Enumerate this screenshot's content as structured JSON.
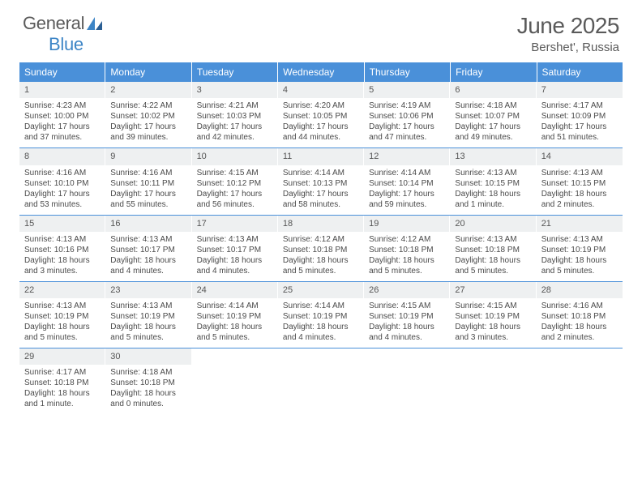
{
  "logo": {
    "part1": "General",
    "part2": "Blue"
  },
  "title": "June 2025",
  "location": "Bershet', Russia",
  "colors": {
    "header_bg": "#4a90d9",
    "header_text": "#ffffff",
    "daynum_bg": "#eef0f1",
    "week_border": "#4a90d9",
    "text": "#4a4a4a",
    "logo_gray": "#5a5a5a",
    "logo_blue": "#3d85c6"
  },
  "fonts": {
    "title_size_pt": 28,
    "location_size_pt": 15,
    "header_cell_pt": 12,
    "body_pt": 10
  },
  "day_labels": [
    "Sunday",
    "Monday",
    "Tuesday",
    "Wednesday",
    "Thursday",
    "Friday",
    "Saturday"
  ],
  "weeks": [
    [
      {
        "n": "1",
        "sr": "4:23 AM",
        "ss": "10:00 PM",
        "dl": "17 hours and 37 minutes."
      },
      {
        "n": "2",
        "sr": "4:22 AM",
        "ss": "10:02 PM",
        "dl": "17 hours and 39 minutes."
      },
      {
        "n": "3",
        "sr": "4:21 AM",
        "ss": "10:03 PM",
        "dl": "17 hours and 42 minutes."
      },
      {
        "n": "4",
        "sr": "4:20 AM",
        "ss": "10:05 PM",
        "dl": "17 hours and 44 minutes."
      },
      {
        "n": "5",
        "sr": "4:19 AM",
        "ss": "10:06 PM",
        "dl": "17 hours and 47 minutes."
      },
      {
        "n": "6",
        "sr": "4:18 AM",
        "ss": "10:07 PM",
        "dl": "17 hours and 49 minutes."
      },
      {
        "n": "7",
        "sr": "4:17 AM",
        "ss": "10:09 PM",
        "dl": "17 hours and 51 minutes."
      }
    ],
    [
      {
        "n": "8",
        "sr": "4:16 AM",
        "ss": "10:10 PM",
        "dl": "17 hours and 53 minutes."
      },
      {
        "n": "9",
        "sr": "4:16 AM",
        "ss": "10:11 PM",
        "dl": "17 hours and 55 minutes."
      },
      {
        "n": "10",
        "sr": "4:15 AM",
        "ss": "10:12 PM",
        "dl": "17 hours and 56 minutes."
      },
      {
        "n": "11",
        "sr": "4:14 AM",
        "ss": "10:13 PM",
        "dl": "17 hours and 58 minutes."
      },
      {
        "n": "12",
        "sr": "4:14 AM",
        "ss": "10:14 PM",
        "dl": "17 hours and 59 minutes."
      },
      {
        "n": "13",
        "sr": "4:13 AM",
        "ss": "10:15 PM",
        "dl": "18 hours and 1 minute."
      },
      {
        "n": "14",
        "sr": "4:13 AM",
        "ss": "10:15 PM",
        "dl": "18 hours and 2 minutes."
      }
    ],
    [
      {
        "n": "15",
        "sr": "4:13 AM",
        "ss": "10:16 PM",
        "dl": "18 hours and 3 minutes."
      },
      {
        "n": "16",
        "sr": "4:13 AM",
        "ss": "10:17 PM",
        "dl": "18 hours and 4 minutes."
      },
      {
        "n": "17",
        "sr": "4:13 AM",
        "ss": "10:17 PM",
        "dl": "18 hours and 4 minutes."
      },
      {
        "n": "18",
        "sr": "4:12 AM",
        "ss": "10:18 PM",
        "dl": "18 hours and 5 minutes."
      },
      {
        "n": "19",
        "sr": "4:12 AM",
        "ss": "10:18 PM",
        "dl": "18 hours and 5 minutes."
      },
      {
        "n": "20",
        "sr": "4:13 AM",
        "ss": "10:18 PM",
        "dl": "18 hours and 5 minutes."
      },
      {
        "n": "21",
        "sr": "4:13 AM",
        "ss": "10:19 PM",
        "dl": "18 hours and 5 minutes."
      }
    ],
    [
      {
        "n": "22",
        "sr": "4:13 AM",
        "ss": "10:19 PM",
        "dl": "18 hours and 5 minutes."
      },
      {
        "n": "23",
        "sr": "4:13 AM",
        "ss": "10:19 PM",
        "dl": "18 hours and 5 minutes."
      },
      {
        "n": "24",
        "sr": "4:14 AM",
        "ss": "10:19 PM",
        "dl": "18 hours and 5 minutes."
      },
      {
        "n": "25",
        "sr": "4:14 AM",
        "ss": "10:19 PM",
        "dl": "18 hours and 4 minutes."
      },
      {
        "n": "26",
        "sr": "4:15 AM",
        "ss": "10:19 PM",
        "dl": "18 hours and 4 minutes."
      },
      {
        "n": "27",
        "sr": "4:15 AM",
        "ss": "10:19 PM",
        "dl": "18 hours and 3 minutes."
      },
      {
        "n": "28",
        "sr": "4:16 AM",
        "ss": "10:18 PM",
        "dl": "18 hours and 2 minutes."
      }
    ],
    [
      {
        "n": "29",
        "sr": "4:17 AM",
        "ss": "10:18 PM",
        "dl": "18 hours and 1 minute."
      },
      {
        "n": "30",
        "sr": "4:18 AM",
        "ss": "10:18 PM",
        "dl": "18 hours and 0 minutes."
      },
      null,
      null,
      null,
      null,
      null
    ]
  ],
  "labels": {
    "sunrise": "Sunrise: ",
    "sunset": "Sunset: ",
    "daylight": "Daylight: "
  }
}
